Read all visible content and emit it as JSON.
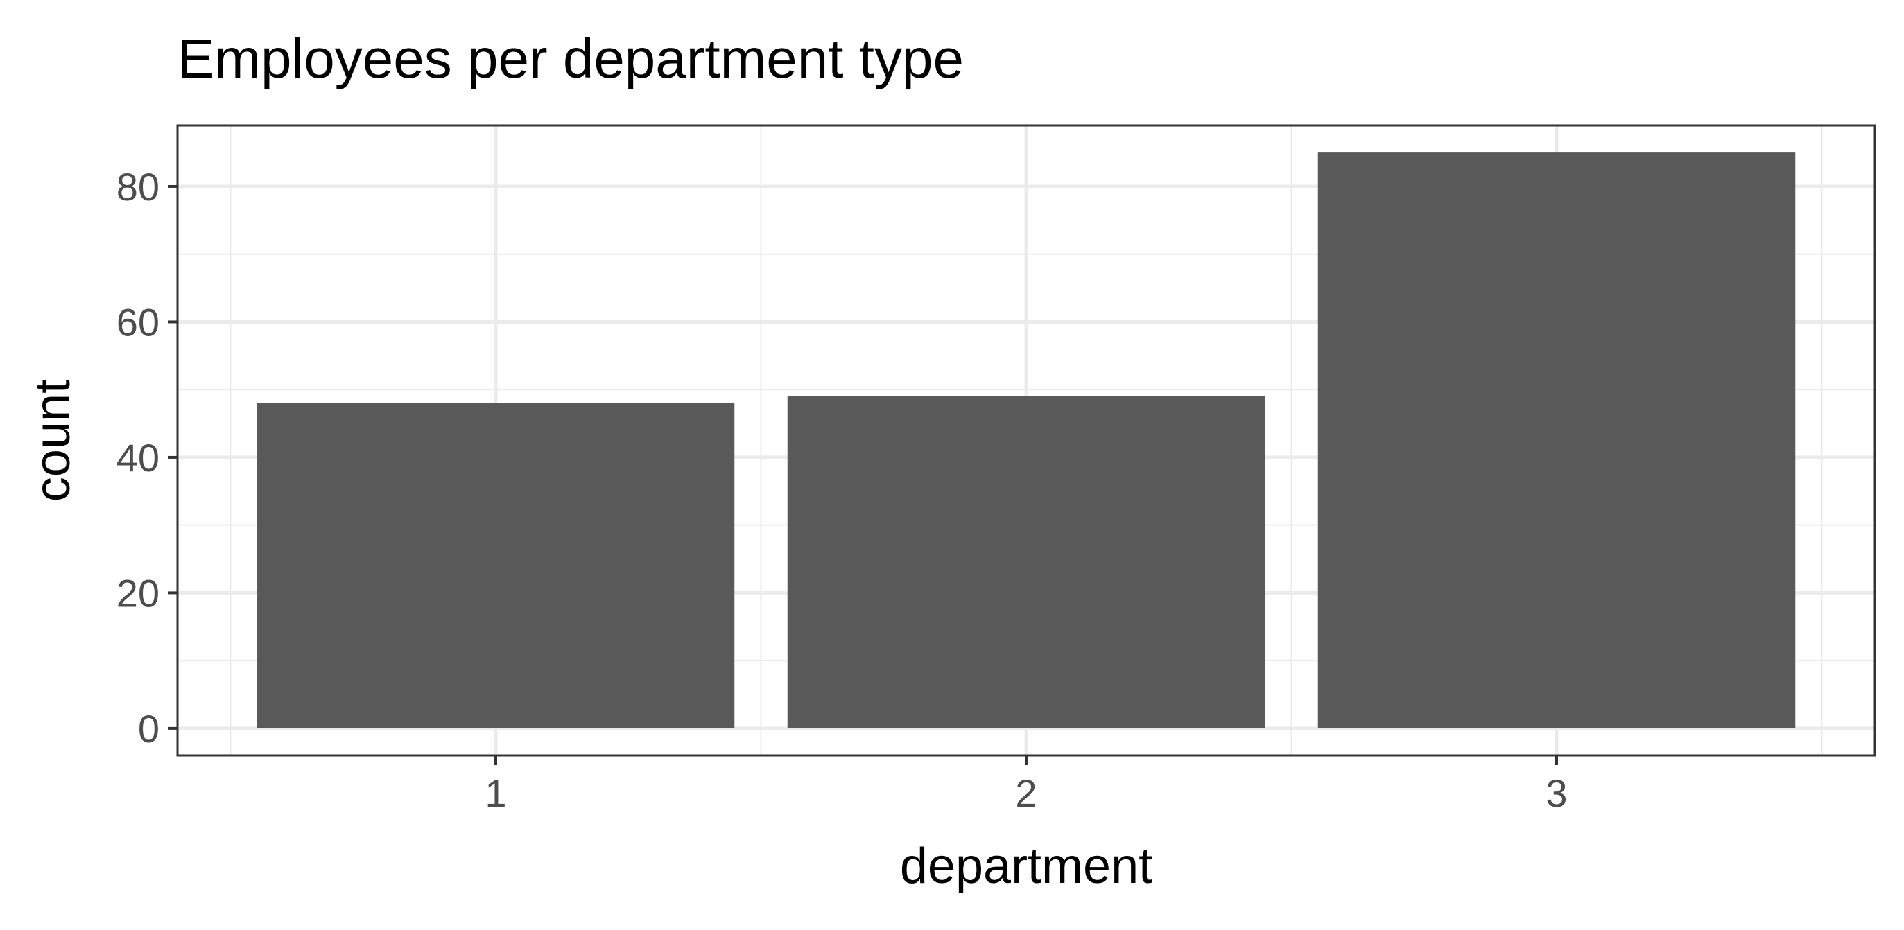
{
  "chart_data": {
    "type": "bar",
    "title": "Employees per department type",
    "xlabel": "department",
    "ylabel": "count",
    "categories": [
      "1",
      "2",
      "3"
    ],
    "values": [
      48,
      49,
      85
    ],
    "ylim": [
      -4,
      89
    ],
    "yticks": [
      0,
      20,
      40,
      60,
      80
    ],
    "ytick_labels": [
      "0",
      "20",
      "40",
      "60",
      "80"
    ],
    "grid": true,
    "bar_color": "#595959",
    "grid_color": "#ebebeb",
    "panel_border_color": "#333333"
  }
}
